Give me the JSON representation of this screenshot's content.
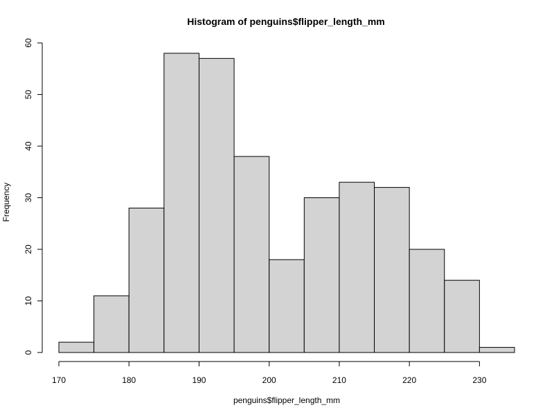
{
  "chart_data": {
    "type": "bar",
    "title": "Histogram of penguins$flipper_length_mm",
    "xlabel": "penguins$flipper_length_mm",
    "ylabel": "Frequency",
    "bins": [
      {
        "start": 170,
        "end": 175,
        "value": 2
      },
      {
        "start": 175,
        "end": 180,
        "value": 11
      },
      {
        "start": 180,
        "end": 185,
        "value": 28
      },
      {
        "start": 185,
        "end": 190,
        "value": 58
      },
      {
        "start": 190,
        "end": 195,
        "value": 57
      },
      {
        "start": 195,
        "end": 200,
        "value": 38
      },
      {
        "start": 200,
        "end": 205,
        "value": 18
      },
      {
        "start": 205,
        "end": 210,
        "value": 30
      },
      {
        "start": 210,
        "end": 215,
        "value": 33
      },
      {
        "start": 215,
        "end": 220,
        "value": 32
      },
      {
        "start": 220,
        "end": 225,
        "value": 20
      },
      {
        "start": 225,
        "end": 230,
        "value": 14
      },
      {
        "start": 230,
        "end": 235,
        "value": 1
      }
    ],
    "xlim": [
      170,
      235
    ],
    "ylim": [
      0,
      60
    ],
    "x_ticks": [
      170,
      180,
      190,
      200,
      210,
      220,
      230
    ],
    "x_tick_labels": [
      "170",
      "180",
      "190",
      "200",
      "210",
      "220",
      "230"
    ],
    "y_ticks": [
      0,
      10,
      20,
      30,
      40,
      50,
      60
    ],
    "y_tick_labels": [
      "0",
      "10",
      "20",
      "30",
      "40",
      "50",
      "60"
    ],
    "grid": false,
    "bar_fill": "#d3d3d3",
    "bar_stroke": "#000000"
  }
}
